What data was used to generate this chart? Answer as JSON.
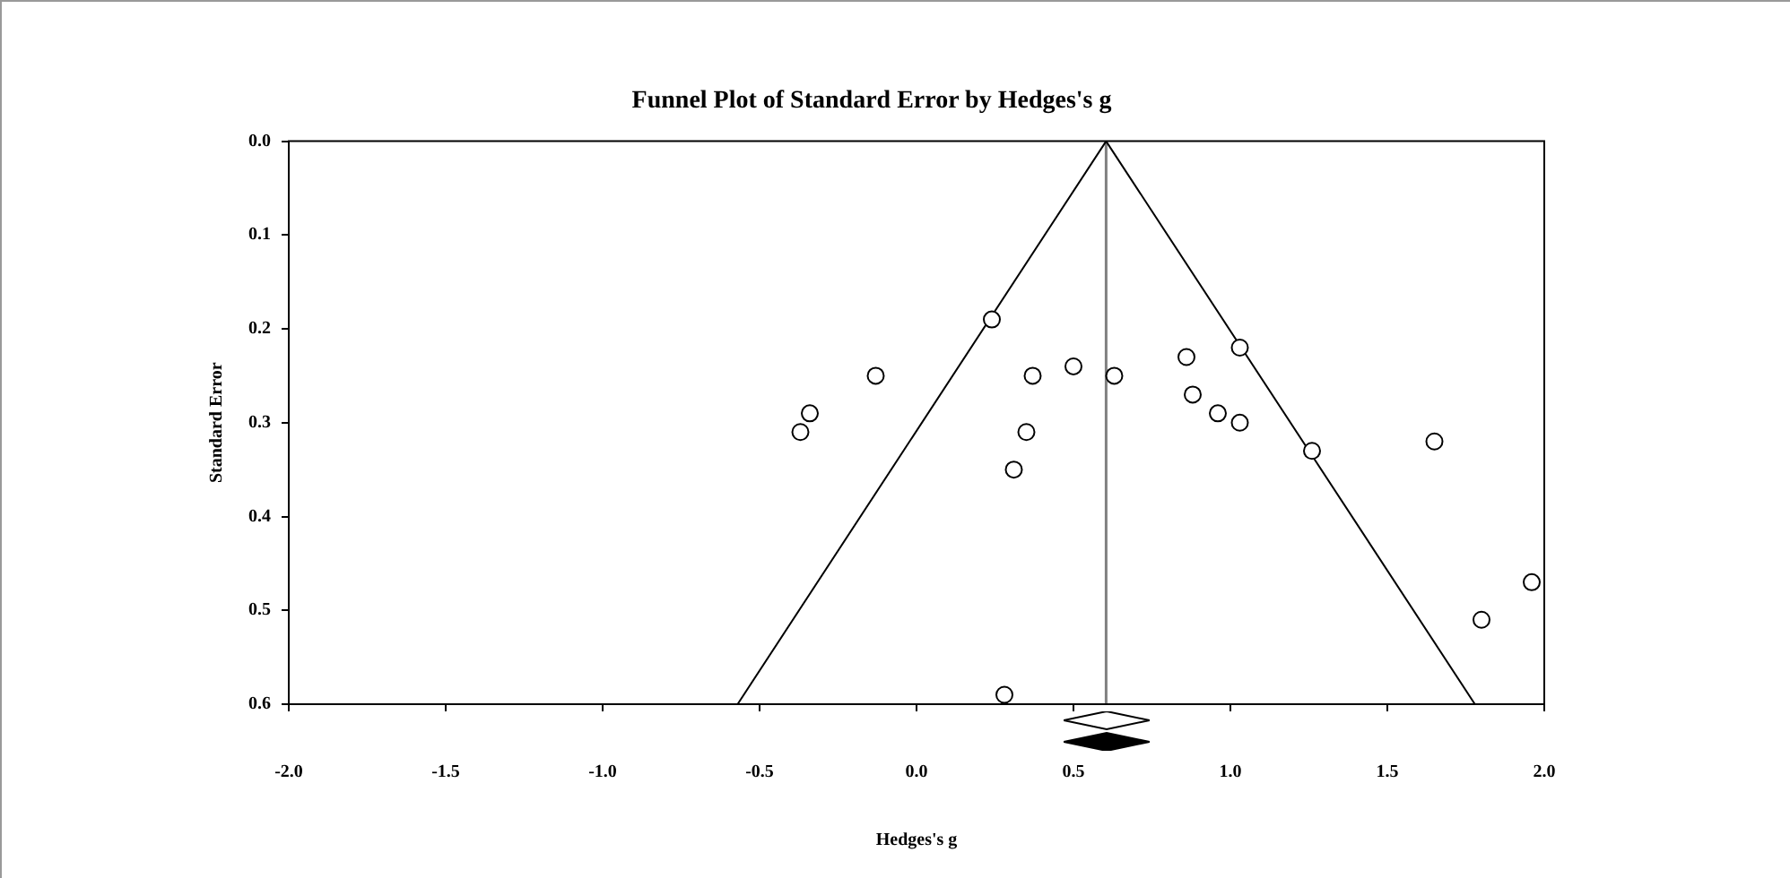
{
  "chart_data": {
    "type": "scatter",
    "title": "Funnel Plot of Standard Error by Hedges's g",
    "xlabel": "Hedges's g",
    "ylabel": "Standard Error",
    "series": [
      {
        "color": "#000000",
        "x": [
          -0.37,
          -0.34,
          -0.13,
          0.24,
          0.28,
          0.31,
          0.35,
          0.37,
          0.5,
          0.63,
          0.86,
          1.03,
          0.88,
          0.96,
          1.03,
          1.26,
          1.65,
          1.8,
          1.96
        ],
        "values": [
          0.31,
          0.29,
          0.25,
          0.19,
          0.59,
          0.35,
          0.31,
          0.25,
          0.24,
          0.25,
          0.23,
          0.22,
          0.27,
          0.29,
          0.3,
          0.33,
          0.32,
          0.51,
          0.47
        ]
      },
      {
        "type": "line",
        "color": "#000000",
        "marker": "none",
        "x": [
          -0.57,
          0.604,
          1.779
        ],
        "values": [
          0.6,
          0,
          0.6
        ]
      }
    ],
    "ref_lines": [
      {
        "axis": "x",
        "value": 0.604,
        "color": "#808080"
      }
    ],
    "marker": "circle",
    "grid": false,
    "legend": false,
    "xlim": [
      -2,
      2
    ],
    "xticks": [
      {
        "value": -2,
        "label": "-2.0"
      },
      {
        "value": -1.5,
        "label": "-1.5"
      },
      {
        "value": -1,
        "label": "-1.0"
      },
      {
        "value": -0.5,
        "label": "-0.5"
      },
      {
        "value": 0,
        "label": "0.0"
      },
      {
        "value": 0.5,
        "label": "0.5"
      },
      {
        "value": 1,
        "label": "1.0"
      },
      {
        "value": 1.5,
        "label": "1.5"
      },
      {
        "value": 2,
        "label": "2.0"
      }
    ],
    "ylim": [
      0.6,
      0
    ],
    "yticks": [
      {
        "value": 0,
        "label": "0.0"
      },
      {
        "value": 0.1,
        "label": "0.1"
      },
      {
        "value": 0.2,
        "label": "0.2"
      },
      {
        "value": 0.3,
        "label": "0.3"
      },
      {
        "value": 0.4,
        "label": "0.4"
      },
      {
        "value": 0.5,
        "label": "0.5"
      },
      {
        "value": 0.6,
        "label": "0.6"
      }
    ]
  }
}
